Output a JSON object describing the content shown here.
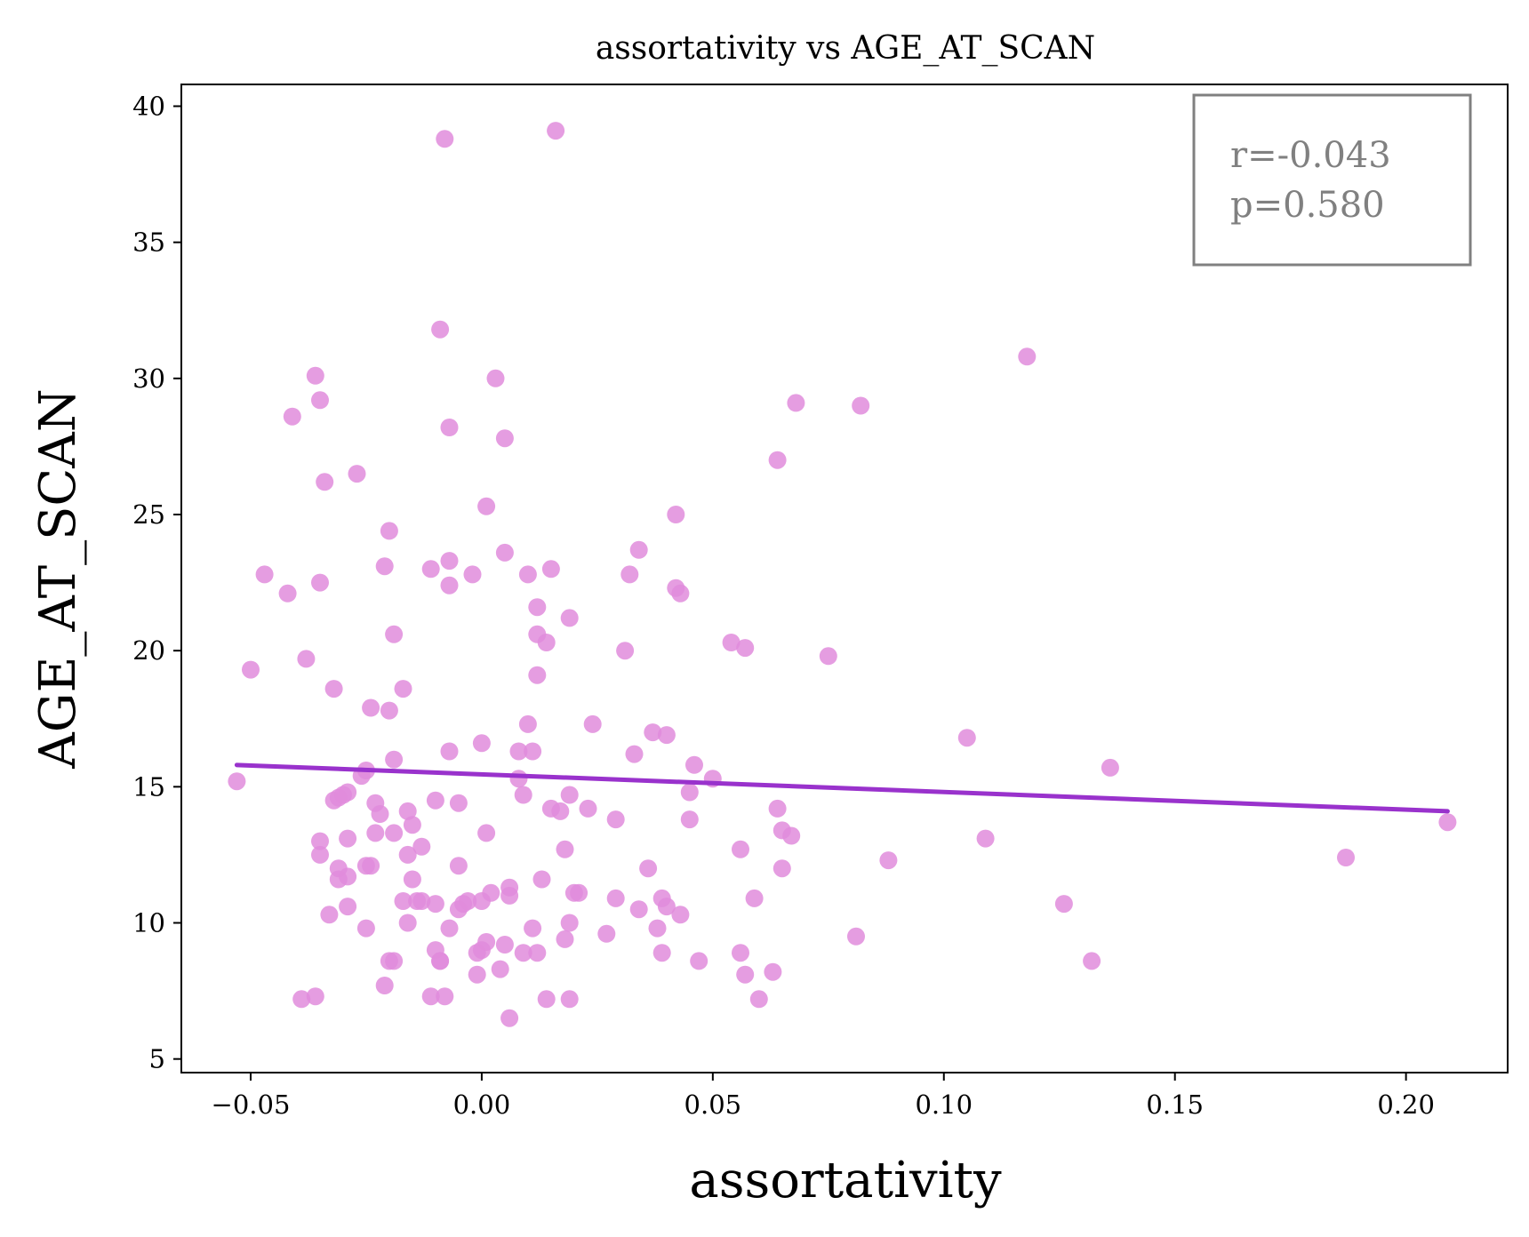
{
  "chart_data": {
    "type": "scatter",
    "title": "assortativity vs AGE_AT_SCAN",
    "xlabel": "assortativity",
    "ylabel": "AGE_AT_SCAN",
    "xlim": [
      -0.065,
      0.222
    ],
    "ylim": [
      4.5,
      40.8
    ],
    "xticks": [
      -0.05,
      0.0,
      0.05,
      0.1,
      0.15,
      0.2
    ],
    "xtick_labels": [
      "−0.05",
      "0.00",
      "0.05",
      "0.10",
      "0.15",
      "0.20"
    ],
    "yticks": [
      5,
      10,
      15,
      20,
      25,
      30,
      35,
      40
    ],
    "ytick_labels": [
      "5",
      "10",
      "15",
      "20",
      "25",
      "30",
      "35",
      "40"
    ],
    "grid": false,
    "point_color": "#e08cdc",
    "line_color": "#9932cc",
    "stats_color": "#808080",
    "annotation": {
      "r_text": "r=-0.043",
      "p_text": "p=0.580",
      "placement": "top-right"
    },
    "fit_line": {
      "x": [
        -0.053,
        0.209
      ],
      "y": [
        15.8,
        14.1
      ]
    },
    "points": [
      [
        -0.053,
        15.2
      ],
      [
        -0.05,
        19.3
      ],
      [
        -0.047,
        22.8
      ],
      [
        -0.042,
        22.1
      ],
      [
        -0.041,
        28.6
      ],
      [
        -0.039,
        7.2
      ],
      [
        -0.038,
        19.7
      ],
      [
        -0.036,
        7.3
      ],
      [
        -0.036,
        30.1
      ],
      [
        -0.035,
        29.2
      ],
      [
        -0.035,
        22.5
      ],
      [
        -0.035,
        12.5
      ],
      [
        -0.035,
        13.0
      ],
      [
        -0.034,
        26.2
      ],
      [
        -0.033,
        10.3
      ],
      [
        -0.032,
        18.6
      ],
      [
        -0.032,
        14.5
      ],
      [
        -0.031,
        14.6
      ],
      [
        -0.031,
        12.0
      ],
      [
        -0.031,
        11.6
      ],
      [
        -0.03,
        14.7
      ],
      [
        -0.029,
        14.8
      ],
      [
        -0.029,
        11.7
      ],
      [
        -0.029,
        13.1
      ],
      [
        -0.029,
        10.6
      ],
      [
        -0.027,
        26.5
      ],
      [
        -0.026,
        15.4
      ],
      [
        -0.025,
        15.6
      ],
      [
        -0.025,
        9.8
      ],
      [
        -0.025,
        12.1
      ],
      [
        -0.024,
        17.9
      ],
      [
        -0.024,
        12.1
      ],
      [
        -0.023,
        14.4
      ],
      [
        -0.023,
        13.3
      ],
      [
        -0.022,
        14.0
      ],
      [
        -0.021,
        23.1
      ],
      [
        -0.021,
        7.7
      ],
      [
        -0.02,
        24.4
      ],
      [
        -0.02,
        17.8
      ],
      [
        -0.02,
        8.6
      ],
      [
        -0.019,
        20.6
      ],
      [
        -0.019,
        16.0
      ],
      [
        -0.019,
        13.3
      ],
      [
        -0.019,
        8.6
      ],
      [
        -0.017,
        18.6
      ],
      [
        -0.017,
        10.8
      ],
      [
        -0.016,
        14.1
      ],
      [
        -0.016,
        10.0
      ],
      [
        -0.016,
        12.5
      ],
      [
        -0.015,
        13.6
      ],
      [
        -0.015,
        11.6
      ],
      [
        -0.014,
        10.8
      ],
      [
        -0.013,
        10.8
      ],
      [
        -0.013,
        12.8
      ],
      [
        -0.011,
        7.3
      ],
      [
        -0.011,
        23.0
      ],
      [
        -0.01,
        14.5
      ],
      [
        -0.01,
        10.7
      ],
      [
        -0.01,
        9.0
      ],
      [
        -0.009,
        31.8
      ],
      [
        -0.009,
        8.6
      ],
      [
        -0.009,
        8.6
      ],
      [
        -0.008,
        7.3
      ],
      [
        -0.008,
        38.8
      ],
      [
        -0.007,
        28.2
      ],
      [
        -0.007,
        23.3
      ],
      [
        -0.007,
        22.4
      ],
      [
        -0.007,
        16.3
      ],
      [
        -0.007,
        9.8
      ],
      [
        -0.005,
        14.4
      ],
      [
        -0.005,
        12.1
      ],
      [
        -0.005,
        10.5
      ],
      [
        -0.004,
        10.7
      ],
      [
        -0.003,
        10.8
      ],
      [
        -0.002,
        22.8
      ],
      [
        -0.001,
        8.9
      ],
      [
        -0.001,
        8.1
      ],
      [
        0.0,
        16.6
      ],
      [
        0.0,
        10.8
      ],
      [
        0.0,
        9.0
      ],
      [
        0.001,
        13.3
      ],
      [
        0.001,
        9.3
      ],
      [
        0.001,
        25.3
      ],
      [
        0.002,
        11.1
      ],
      [
        0.003,
        30.0
      ],
      [
        0.004,
        8.3
      ],
      [
        0.005,
        27.8
      ],
      [
        0.005,
        23.6
      ],
      [
        0.005,
        9.2
      ],
      [
        0.006,
        11.3
      ],
      [
        0.006,
        11.0
      ],
      [
        0.006,
        6.5
      ],
      [
        0.008,
        16.3
      ],
      [
        0.008,
        15.3
      ],
      [
        0.009,
        14.7
      ],
      [
        0.009,
        8.9
      ],
      [
        0.01,
        17.3
      ],
      [
        0.01,
        22.8
      ],
      [
        0.011,
        16.3
      ],
      [
        0.011,
        9.8
      ],
      [
        0.012,
        21.6
      ],
      [
        0.012,
        20.6
      ],
      [
        0.012,
        19.1
      ],
      [
        0.012,
        8.9
      ],
      [
        0.013,
        11.6
      ],
      [
        0.014,
        20.3
      ],
      [
        0.014,
        7.2
      ],
      [
        0.015,
        23.0
      ],
      [
        0.015,
        14.2
      ],
      [
        0.016,
        39.1
      ],
      [
        0.017,
        14.1
      ],
      [
        0.018,
        12.7
      ],
      [
        0.018,
        9.4
      ],
      [
        0.019,
        21.2
      ],
      [
        0.019,
        14.7
      ],
      [
        0.019,
        10.0
      ],
      [
        0.019,
        7.2
      ],
      [
        0.02,
        11.1
      ],
      [
        0.021,
        11.1
      ],
      [
        0.023,
        14.2
      ],
      [
        0.024,
        17.3
      ],
      [
        0.027,
        9.6
      ],
      [
        0.029,
        13.8
      ],
      [
        0.029,
        10.9
      ],
      [
        0.031,
        20.0
      ],
      [
        0.032,
        22.8
      ],
      [
        0.033,
        16.2
      ],
      [
        0.034,
        10.5
      ],
      [
        0.034,
        23.7
      ],
      [
        0.036,
        12.0
      ],
      [
        0.037,
        17.0
      ],
      [
        0.038,
        9.8
      ],
      [
        0.039,
        10.9
      ],
      [
        0.039,
        8.9
      ],
      [
        0.04,
        16.9
      ],
      [
        0.04,
        10.6
      ],
      [
        0.042,
        25.0
      ],
      [
        0.042,
        22.3
      ],
      [
        0.043,
        22.1
      ],
      [
        0.043,
        10.3
      ],
      [
        0.045,
        14.8
      ],
      [
        0.045,
        13.8
      ],
      [
        0.046,
        15.8
      ],
      [
        0.047,
        8.6
      ],
      [
        0.05,
        15.3
      ],
      [
        0.054,
        20.3
      ],
      [
        0.056,
        12.7
      ],
      [
        0.056,
        8.9
      ],
      [
        0.057,
        20.1
      ],
      [
        0.057,
        8.1
      ],
      [
        0.059,
        10.9
      ],
      [
        0.06,
        7.2
      ],
      [
        0.063,
        8.2
      ],
      [
        0.064,
        27.0
      ],
      [
        0.064,
        14.2
      ],
      [
        0.065,
        12.0
      ],
      [
        0.065,
        13.4
      ],
      [
        0.067,
        13.2
      ],
      [
        0.068,
        29.1
      ],
      [
        0.075,
        19.8
      ],
      [
        0.081,
        9.5
      ],
      [
        0.082,
        29.0
      ],
      [
        0.088,
        12.3
      ],
      [
        0.105,
        16.8
      ],
      [
        0.109,
        13.1
      ],
      [
        0.118,
        30.8
      ],
      [
        0.126,
        10.7
      ],
      [
        0.132,
        8.6
      ],
      [
        0.136,
        15.7
      ],
      [
        0.187,
        12.4
      ],
      [
        0.209,
        13.7
      ]
    ]
  }
}
